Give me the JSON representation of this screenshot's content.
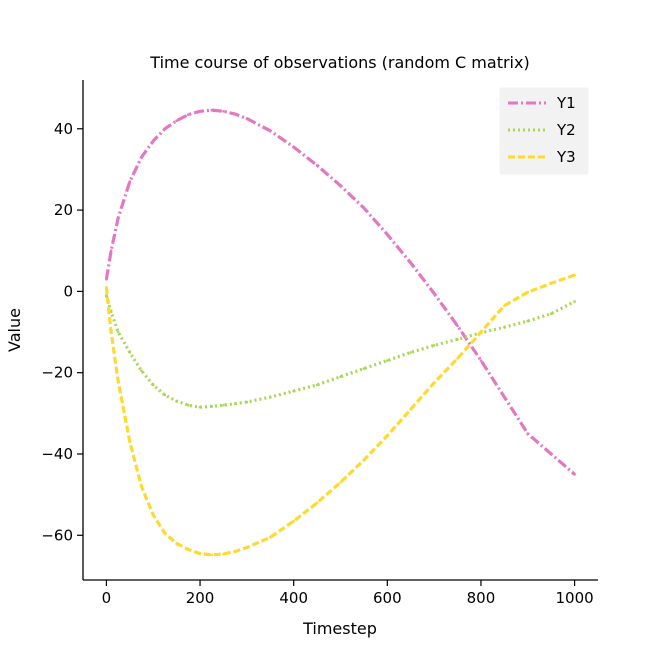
{
  "chart_data": {
    "type": "line",
    "title": "Time course of observations (random C matrix)",
    "xlabel": "Timestep",
    "ylabel": "Value",
    "xlim": [
      -50,
      1050
    ],
    "ylim": [
      -71,
      52
    ],
    "xticks": [
      0,
      200,
      400,
      600,
      800,
      1000
    ],
    "yticks": [
      40,
      20,
      0,
      -20,
      -40,
      -60
    ],
    "xtick_labels": [
      "0",
      "200",
      "400",
      "600",
      "800",
      "1000"
    ],
    "ytick_labels": [
      "40",
      "20",
      "0",
      "−20",
      "−40",
      "−60"
    ],
    "legend_position": "top-right",
    "series": [
      {
        "name": "Y1",
        "color": "#e377c2",
        "style": "dashdot",
        "x": [
          0,
          10,
          25,
          50,
          75,
          100,
          125,
          150,
          175,
          200,
          225,
          250,
          275,
          300,
          350,
          400,
          450,
          500,
          550,
          600,
          650,
          700,
          750,
          800,
          850,
          900,
          950,
          1000
        ],
        "values": [
          3,
          10,
          18,
          27,
          33,
          37,
          40,
          42,
          43.5,
          44.3,
          44.6,
          44.3,
          43.6,
          42.5,
          39.5,
          35.5,
          31,
          26,
          20.5,
          14,
          7,
          -0.5,
          -8.5,
          -17,
          -26,
          -35,
          -40,
          -45
        ]
      },
      {
        "name": "Y2",
        "color": "#a6d854",
        "style": "dotted",
        "x": [
          0,
          10,
          25,
          50,
          75,
          100,
          125,
          150,
          175,
          200,
          225,
          250,
          275,
          300,
          350,
          400,
          450,
          500,
          550,
          600,
          650,
          700,
          750,
          800,
          850,
          900,
          950,
          1000
        ],
        "values": [
          -1,
          -5,
          -10,
          -15,
          -19.5,
          -23,
          -25.5,
          -27,
          -28,
          -28.5,
          -28.3,
          -28,
          -27.6,
          -27.2,
          -26,
          -24.5,
          -23,
          -21,
          -19,
          -17,
          -15,
          -13.3,
          -11.8,
          -10.2,
          -8.8,
          -7.3,
          -5.5,
          -2.5
        ]
      },
      {
        "name": "Y3",
        "color": "#ffd92f",
        "style": "dashed",
        "x": [
          0,
          10,
          25,
          50,
          75,
          100,
          125,
          150,
          175,
          200,
          225,
          250,
          275,
          300,
          350,
          400,
          450,
          500,
          550,
          600,
          650,
          700,
          750,
          800,
          850,
          900,
          950,
          1000
        ],
        "values": [
          1,
          -10,
          -22,
          -37,
          -48,
          -55,
          -59.5,
          -62,
          -63.5,
          -64.5,
          -64.8,
          -64.6,
          -64,
          -63,
          -60.5,
          -56.5,
          -52,
          -47,
          -41.5,
          -35.5,
          -29,
          -22.5,
          -16.5,
          -10,
          -3.5,
          -0.2,
          2,
          4
        ]
      }
    ]
  }
}
